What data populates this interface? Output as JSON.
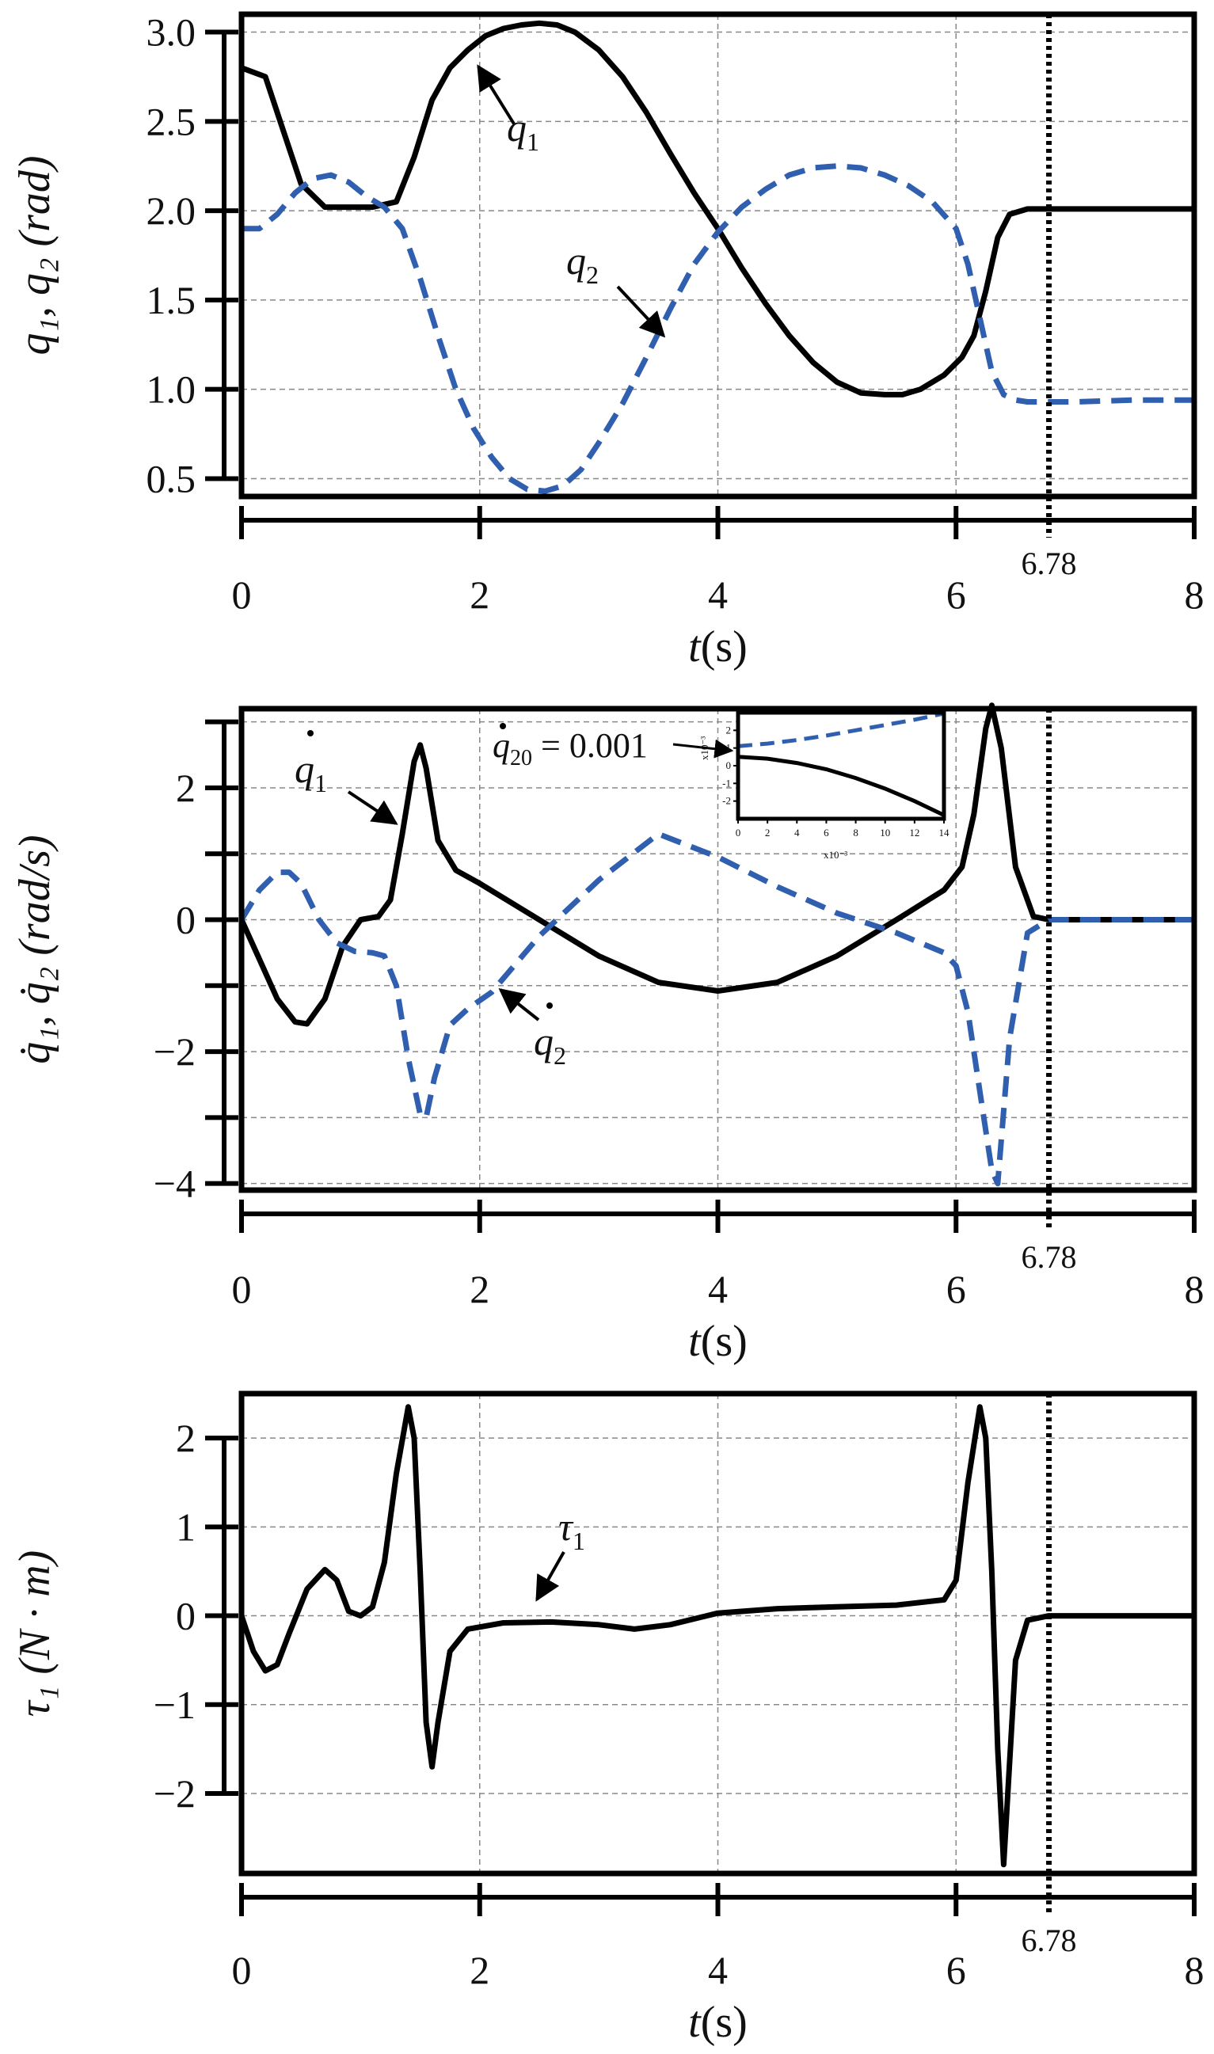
{
  "figure": {
    "accent_color": "#2f5fae",
    "primary_color": "#000000",
    "grid_color": "#888888"
  },
  "chart_data": [
    {
      "id": "positions",
      "type": "line",
      "xlabel_italic": "t",
      "xlabel_unit": "(s)",
      "ylabel": "q₁, q₂ (rad)",
      "xlim": [
        0,
        8
      ],
      "ylim": [
        0.4,
        3.1
      ],
      "xticks": [
        0,
        2,
        4,
        6,
        8
      ],
      "xtick_labels": [
        "0",
        "2",
        "4",
        "6",
        "8"
      ],
      "yticks": [
        0.5,
        1.0,
        1.5,
        2.0,
        2.5,
        3.0
      ],
      "ytick_labels": [
        "0.5",
        "1.0",
        "1.5",
        "2.0",
        "2.5",
        "3.0"
      ],
      "grid": true,
      "vline": {
        "x": 6.78,
        "label": "6.78"
      },
      "series": [
        {
          "name": "q1",
          "style": "solid",
          "color": "#000000",
          "x": [
            0,
            0.2,
            0.35,
            0.5,
            0.7,
            0.9,
            1.1,
            1.3,
            1.45,
            1.6,
            1.75,
            1.9,
            2.05,
            2.2,
            2.35,
            2.5,
            2.65,
            2.8,
            3.0,
            3.2,
            3.4,
            3.6,
            3.8,
            4.0,
            4.2,
            4.4,
            4.6,
            4.8,
            5.0,
            5.2,
            5.4,
            5.55,
            5.7,
            5.9,
            6.05,
            6.15,
            6.25,
            6.35,
            6.45,
            6.6,
            6.78,
            7.0,
            7.5,
            8.0
          ],
          "values": [
            2.8,
            2.75,
            2.45,
            2.15,
            2.02,
            2.02,
            2.02,
            2.05,
            2.3,
            2.62,
            2.8,
            2.9,
            2.98,
            3.02,
            3.04,
            3.05,
            3.04,
            3.0,
            2.9,
            2.75,
            2.55,
            2.32,
            2.1,
            1.9,
            1.68,
            1.48,
            1.3,
            1.15,
            1.04,
            0.98,
            0.97,
            0.97,
            1.0,
            1.08,
            1.18,
            1.3,
            1.55,
            1.85,
            1.98,
            2.01,
            2.01,
            2.01,
            2.01,
            2.01
          ]
        },
        {
          "name": "q2",
          "style": "dashed",
          "color": "#2f5fae",
          "x": [
            0,
            0.15,
            0.3,
            0.45,
            0.6,
            0.75,
            0.9,
            1.05,
            1.2,
            1.35,
            1.5,
            1.65,
            1.8,
            1.95,
            2.1,
            2.25,
            2.4,
            2.55,
            2.7,
            2.85,
            3.0,
            3.2,
            3.4,
            3.6,
            3.8,
            4.0,
            4.2,
            4.4,
            4.6,
            4.8,
            5.0,
            5.2,
            5.4,
            5.6,
            5.8,
            6.0,
            6.1,
            6.2,
            6.3,
            6.4,
            6.5,
            6.6,
            6.78,
            7.0,
            7.5,
            8.0
          ],
          "values": [
            1.9,
            1.9,
            1.98,
            2.1,
            2.18,
            2.2,
            2.16,
            2.08,
            2.02,
            1.9,
            1.62,
            1.3,
            1.0,
            0.78,
            0.62,
            0.5,
            0.44,
            0.43,
            0.46,
            0.55,
            0.7,
            0.92,
            1.18,
            1.45,
            1.7,
            1.88,
            2.02,
            2.12,
            2.2,
            2.24,
            2.25,
            2.24,
            2.2,
            2.14,
            2.05,
            1.9,
            1.7,
            1.4,
            1.1,
            0.97,
            0.94,
            0.93,
            0.93,
            0.93,
            0.94,
            0.94
          ]
        }
      ],
      "annotations": [
        {
          "id": "q1",
          "base": "q",
          "sub": "1",
          "dot": false
        },
        {
          "id": "q2",
          "base": "q",
          "sub": "2",
          "dot": false
        }
      ]
    },
    {
      "id": "velocities",
      "type": "line",
      "xlabel_italic": "t",
      "xlabel_unit": "(s)",
      "ylabel": "q̇₁, q̇₂ (rad/s)",
      "xlim": [
        0,
        8
      ],
      "ylim": [
        -4.1,
        3.2
      ],
      "xticks": [
        0,
        2,
        4,
        6,
        8
      ],
      "xtick_labels": [
        "0",
        "2",
        "4",
        "6",
        "8"
      ],
      "yticks": [
        -4,
        -3,
        -2,
        -1,
        0,
        1,
        2,
        3
      ],
      "ytick_labels": [
        "−4",
        "",
        "−2",
        "",
        "0",
        "",
        "2",
        ""
      ],
      "grid": true,
      "vline": {
        "x": 6.78,
        "label": "6.78"
      },
      "series": [
        {
          "name": "q1dot",
          "style": "solid",
          "color": "#000000",
          "x": [
            0,
            0.15,
            0.3,
            0.45,
            0.55,
            0.7,
            0.85,
            1.0,
            1.15,
            1.25,
            1.35,
            1.45,
            1.5,
            1.55,
            1.65,
            1.8,
            2.0,
            2.5,
            3.0,
            3.5,
            4.0,
            4.5,
            5.0,
            5.5,
            5.9,
            6.05,
            6.15,
            6.25,
            6.3,
            6.38,
            6.5,
            6.65,
            6.78,
            7.0,
            8.0
          ],
          "values": [
            0,
            -0.6,
            -1.2,
            -1.55,
            -1.58,
            -1.2,
            -0.4,
            0,
            0.05,
            0.3,
            1.3,
            2.4,
            2.65,
            2.3,
            1.2,
            0.75,
            0.55,
            0.0,
            -0.55,
            -0.95,
            -1.08,
            -0.95,
            -0.55,
            0.0,
            0.45,
            0.8,
            1.6,
            2.9,
            3.25,
            2.6,
            0.8,
            0.05,
            0,
            0,
            0
          ]
        },
        {
          "name": "q2dot",
          "style": "dashed",
          "color": "#2f5fae",
          "x": [
            0,
            0.15,
            0.3,
            0.4,
            0.5,
            0.65,
            0.8,
            0.95,
            1.1,
            1.2,
            1.3,
            1.4,
            1.5,
            1.55,
            1.62,
            1.75,
            1.9,
            2.1,
            2.5,
            3.0,
            3.5,
            4.0,
            4.5,
            5.0,
            5.5,
            5.9,
            6.0,
            6.1,
            6.2,
            6.3,
            6.35,
            6.45,
            6.6,
            6.78,
            7.0,
            8.0
          ],
          "values": [
            0,
            0.45,
            0.72,
            0.72,
            0.55,
            0.0,
            -0.35,
            -0.48,
            -0.5,
            -0.55,
            -1.0,
            -2.1,
            -2.95,
            -3.0,
            -2.4,
            -1.6,
            -1.35,
            -1.1,
            -0.25,
            0.6,
            1.3,
            0.95,
            0.5,
            0.1,
            -0.2,
            -0.5,
            -0.7,
            -1.4,
            -2.6,
            -3.8,
            -4.0,
            -1.8,
            -0.2,
            0,
            0,
            0
          ]
        }
      ],
      "annotations": [
        {
          "id": "q1dot",
          "base": "q",
          "sub": "1",
          "dot": true
        },
        {
          "id": "q2dot",
          "base": "q",
          "sub": "2",
          "dot": true
        },
        {
          "id": "q20",
          "base": "q",
          "sub": "20",
          "dot": true,
          "value_text": " = 0.001"
        }
      ],
      "inset": {
        "xlim": [
          0,
          14
        ],
        "ylim": [
          -3,
          3
        ],
        "xticks": [
          0,
          2,
          4,
          6,
          8,
          10,
          12,
          14
        ],
        "xtick_labels": [
          "0",
          "2",
          "4",
          "6",
          "8",
          "10",
          "12",
          "14"
        ],
        "yticks": [
          2,
          1,
          0,
          -1,
          -2
        ],
        "ytick_labels": [
          "2",
          "1",
          "0",
          "-1",
          "-2"
        ],
        "x_exponent": "x10⁻³",
        "y_exponent": "x10⁻³",
        "series": [
          {
            "name": "q1dot_zoom",
            "style": "solid",
            "color": "#000000",
            "x": [
              0,
              2,
              4,
              6,
              8,
              10,
              12,
              14
            ],
            "values": [
              0.5,
              0.4,
              0.15,
              -0.2,
              -0.7,
              -1.3,
              -2.0,
              -2.8
            ]
          },
          {
            "name": "q2dot_zoom",
            "style": "dashed",
            "color": "#2f5fae",
            "x": [
              0,
              2,
              4,
              6,
              8,
              10,
              12,
              14
            ],
            "values": [
              1.1,
              1.25,
              1.45,
              1.7,
              2.0,
              2.3,
              2.6,
              2.95
            ]
          }
        ]
      }
    },
    {
      "id": "torque",
      "type": "line",
      "xlabel_italic": "t",
      "xlabel_unit": "(s)",
      "ylabel": "τ₁ (N · m)",
      "xlim": [
        0,
        8
      ],
      "ylim": [
        -2.9,
        2.5
      ],
      "xticks": [
        0,
        2,
        4,
        6,
        8
      ],
      "xtick_labels": [
        "0",
        "2",
        "4",
        "6",
        "8"
      ],
      "yticks": [
        -2,
        -1,
        0,
        1,
        2
      ],
      "ytick_labels": [
        "−2",
        "−1",
        "0",
        "1",
        "2"
      ],
      "grid": true,
      "vline": {
        "x": 6.78,
        "label": "6.78"
      },
      "series": [
        {
          "name": "tau1",
          "style": "solid",
          "color": "#000000",
          "x": [
            0,
            0.1,
            0.2,
            0.3,
            0.4,
            0.55,
            0.7,
            0.8,
            0.9,
            1.0,
            1.1,
            1.2,
            1.3,
            1.4,
            1.45,
            1.5,
            1.55,
            1.6,
            1.65,
            1.75,
            1.9,
            2.2,
            2.6,
            3.0,
            3.3,
            3.6,
            4.0,
            4.5,
            5.0,
            5.5,
            5.9,
            6.0,
            6.1,
            6.2,
            6.25,
            6.3,
            6.35,
            6.4,
            6.5,
            6.6,
            6.78,
            7.0,
            8.0
          ],
          "values": [
            0,
            -0.4,
            -0.62,
            -0.55,
            -0.2,
            0.3,
            0.52,
            0.4,
            0.05,
            0.0,
            0.1,
            0.6,
            1.6,
            2.35,
            2.0,
            0.5,
            -1.2,
            -1.7,
            -1.2,
            -0.4,
            -0.15,
            -0.08,
            -0.07,
            -0.1,
            -0.15,
            -0.1,
            0.03,
            0.08,
            0.1,
            0.12,
            0.18,
            0.4,
            1.5,
            2.35,
            2.0,
            0.5,
            -1.5,
            -2.8,
            -0.5,
            -0.05,
            0,
            0,
            0
          ]
        }
      ],
      "annotations": [
        {
          "id": "tau1",
          "base": "τ",
          "sub": "1",
          "dot": false
        }
      ]
    }
  ]
}
